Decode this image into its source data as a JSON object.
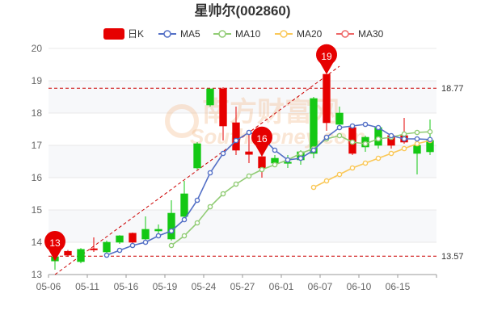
{
  "chart_data": {
    "type": "candlestick",
    "title": "星帅尔(002860)",
    "legend": [
      {
        "key": "k",
        "label": "日K",
        "color": "#e60000",
        "style": "box"
      },
      {
        "key": "ma5",
        "label": "MA5",
        "color": "#5470c6",
        "style": "line"
      },
      {
        "key": "ma10",
        "label": "MA10",
        "color": "#91cc75",
        "style": "line"
      },
      {
        "key": "ma20",
        "label": "MA20",
        "color": "#fac858",
        "style": "line"
      },
      {
        "key": "ma30",
        "label": "MA30",
        "color": "#ee6666",
        "style": "line"
      }
    ],
    "ylim": [
      13,
      20
    ],
    "yticks": [
      13,
      14,
      15,
      16,
      17,
      18,
      19,
      20
    ],
    "x_tick_labels": [
      "05-06",
      "05-11",
      "05-16",
      "05-19",
      "05-24",
      "05-27",
      "06-01",
      "06-07",
      "06-10",
      "06-15"
    ],
    "candles": [
      {
        "date": "05-06",
        "open": 13.55,
        "close": 13.42,
        "high": 13.62,
        "low": 13.15
      },
      {
        "date": "05-07",
        "open": 13.6,
        "close": 13.72,
        "high": 13.76,
        "low": 13.55
      },
      {
        "date": "05-10",
        "open": 13.78,
        "close": 13.4,
        "high": 13.82,
        "low": 13.35
      },
      {
        "date": "05-11",
        "open": 13.78,
        "close": 13.8,
        "high": 14.15,
        "low": 13.7
      },
      {
        "date": "05-12",
        "open": 14.0,
        "close": 13.7,
        "high": 14.05,
        "low": 13.65
      },
      {
        "date": "05-13",
        "open": 14.2,
        "close": 14.0,
        "high": 14.22,
        "low": 13.95
      },
      {
        "date": "05-14",
        "open": 14.0,
        "close": 14.28,
        "high": 14.3,
        "low": 13.95
      },
      {
        "date": "05-17",
        "open": 14.4,
        "close": 14.1,
        "high": 14.8,
        "low": 14.0
      },
      {
        "date": "05-18",
        "open": 14.4,
        "close": 14.35,
        "high": 14.55,
        "low": 14.2
      },
      {
        "date": "05-19",
        "open": 14.9,
        "close": 14.1,
        "high": 15.3,
        "low": 14.05
      },
      {
        "date": "05-20",
        "open": 15.5,
        "close": 14.8,
        "high": 15.9,
        "low": 14.7
      },
      {
        "date": "05-21",
        "open": 17.05,
        "close": 16.3,
        "high": 17.1,
        "low": 16.25
      },
      {
        "date": "05-24",
        "open": 18.75,
        "close": 18.25,
        "high": 18.75,
        "low": 18.2
      },
      {
        "date": "05-25",
        "open": 17.6,
        "close": 18.75,
        "high": 18.8,
        "low": 17.15
      },
      {
        "date": "05-26",
        "open": 16.85,
        "close": 17.7,
        "high": 18.2,
        "low": 16.7
      },
      {
        "date": "05-27",
        "open": 16.72,
        "close": 16.8,
        "high": 17.45,
        "low": 16.45
      },
      {
        "date": "05-28",
        "open": 16.3,
        "close": 16.65,
        "high": 16.8,
        "low": 16.0
      },
      {
        "date": "05-31",
        "open": 16.6,
        "close": 16.45,
        "high": 16.7,
        "low": 16.35
      },
      {
        "date": "06-01",
        "open": 16.48,
        "close": 16.45,
        "high": 16.7,
        "low": 16.3
      },
      {
        "date": "06-02",
        "open": 16.8,
        "close": 16.55,
        "high": 16.85,
        "low": 16.4
      },
      {
        "date": "06-03",
        "open": 18.45,
        "close": 16.75,
        "high": 18.5,
        "low": 16.6
      },
      {
        "date": "06-04",
        "open": 17.7,
        "close": 19.2,
        "high": 19.2,
        "low": 17.45
      },
      {
        "date": "06-07",
        "open": 18.0,
        "close": 17.65,
        "high": 18.2,
        "low": 17.6
      },
      {
        "date": "06-08",
        "open": 16.75,
        "close": 17.55,
        "high": 17.6,
        "low": 16.7
      },
      {
        "date": "06-09",
        "open": 17.25,
        "close": 16.95,
        "high": 17.3,
        "low": 16.8
      },
      {
        "date": "06-10",
        "open": 17.55,
        "close": 17.0,
        "high": 17.6,
        "low": 16.9
      },
      {
        "date": "06-11",
        "open": 17.0,
        "close": 17.3,
        "high": 17.35,
        "low": 16.9
      },
      {
        "date": "06-15",
        "open": 17.1,
        "close": 17.3,
        "high": 17.85,
        "low": 17.05
      },
      {
        "date": "06-16",
        "open": 17.0,
        "close": 16.75,
        "high": 17.05,
        "low": 16.1
      },
      {
        "date": "06-17",
        "open": 17.15,
        "close": 16.8,
        "high": 17.8,
        "low": 16.7
      }
    ],
    "ma5": [
      null,
      null,
      null,
      null,
      13.6,
      13.75,
      13.9,
      14.0,
      14.2,
      14.35,
      14.7,
      15.3,
      16.15,
      16.75,
      17.15,
      17.4,
      17.25,
      16.85,
      16.55,
      16.6,
      16.85,
      17.25,
      17.55,
      17.6,
      17.65,
      17.55,
      17.3,
      17.2,
      17.2,
      17.18
    ],
    "ma10": [
      null,
      null,
      null,
      null,
      null,
      null,
      null,
      null,
      null,
      13.9,
      14.2,
      14.6,
      15.1,
      15.5,
      15.8,
      16.05,
      16.25,
      16.4,
      16.55,
      16.75,
      16.9,
      17.2,
      17.3,
      17.1,
      17.05,
      17.2,
      17.25,
      17.35,
      17.4,
      17.42
    ],
    "ma20": [
      null,
      null,
      null,
      null,
      null,
      null,
      null,
      null,
      null,
      null,
      null,
      null,
      null,
      null,
      null,
      null,
      null,
      null,
      null,
      null,
      15.7,
      15.9,
      16.1,
      16.3,
      16.45,
      16.6,
      16.75,
      16.9,
      17.05,
      17.15
    ],
    "ma30": [],
    "reference_lines": [
      {
        "value": 18.77,
        "label": "18.77"
      },
      {
        "value": 13.57,
        "label": "13.57"
      }
    ],
    "markers": [
      {
        "label": "13",
        "index": 0,
        "value": 13.42
      },
      {
        "label": "16",
        "index": 16,
        "value": 16.65
      },
      {
        "label": "19",
        "index": 21,
        "value": 19.2
      }
    ],
    "trend_line": {
      "from_index": 0,
      "from_value": 13.0,
      "to_index": 22,
      "to_value": 19.45
    },
    "colors": {
      "up": "#e60000",
      "down": "#14c814",
      "axis": "#999999",
      "grid": "#e8e8e8",
      "band": "#f7f8fa",
      "ref": "#cc0000",
      "pin": "#e60000"
    }
  },
  "watermark": {
    "cn": "南方财富网",
    "en": "Southmoney.com"
  }
}
